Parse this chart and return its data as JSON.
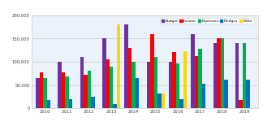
{
  "years": [
    "2010",
    "2011",
    "2012",
    "2013",
    "2014",
    "2015",
    "2016",
    "2017",
    "2018",
    "2019"
  ],
  "budget": [
    65000,
    100000,
    110000,
    150000,
    180000,
    100000,
    100000,
    160000,
    140000,
    140000
  ],
  "income": [
    78000,
    78000,
    72000,
    105000,
    130000,
    160000,
    120000,
    112000,
    150000,
    18000
  ],
  "expenses": [
    65000,
    68000,
    80000,
    90000,
    100000,
    110000,
    97000,
    128000,
    150000,
    140000
  ],
  "pledges": [
    18000,
    20000,
    25000,
    10000,
    65000,
    32000,
    20000,
    52000,
    62000,
    62000
  ],
  "delta": [
    0,
    0,
    0,
    180000,
    0,
    32000,
    122000,
    0,
    0,
    0
  ],
  "colors": {
    "budget": "#7030A0",
    "income": "#FF0000",
    "expenses": "#00B050",
    "pledges": "#0070C0",
    "delta": "#FFD700"
  },
  "ylim": [
    0,
    200000
  ],
  "yticks": [
    0,
    50000,
    100000,
    150000,
    200000
  ],
  "ytick_labels": [
    "0",
    "50,000",
    "100,000",
    "150,000",
    "200,000"
  ],
  "legend_labels": [
    "Budget",
    "Income",
    "Expenses",
    "Pledges",
    "Delta"
  ],
  "background_color": "#FFFFFF",
  "grid_color": "#C8C8C8",
  "plot_area_color": "#EAF3FB"
}
